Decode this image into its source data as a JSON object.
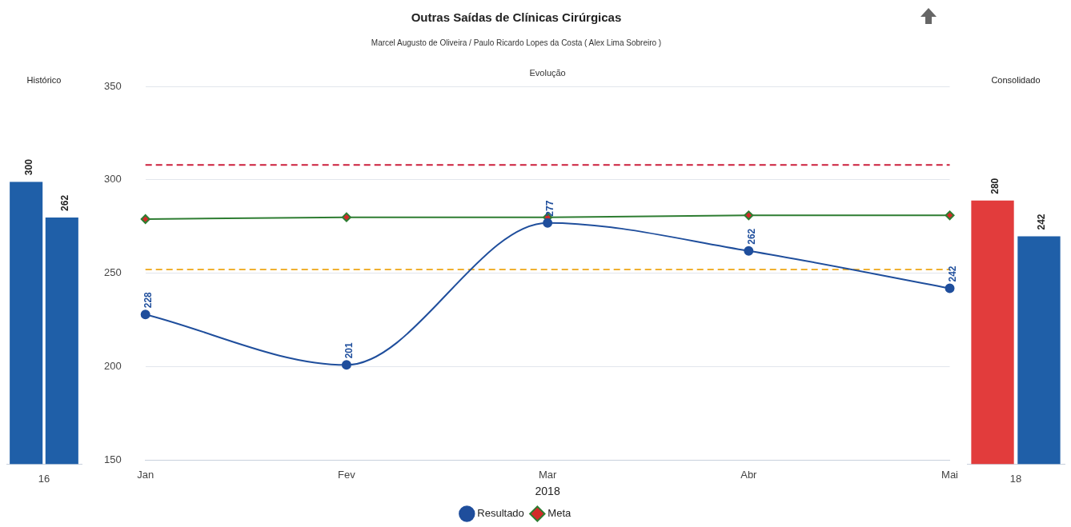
{
  "chart_data": [
    {
      "type": "bar",
      "title": "Histórico",
      "categories": [
        "16"
      ],
      "tick_labels": "x",
      "grid": false,
      "legend": false,
      "series": [
        {
          "color": "#1f5fa8",
          "values": [
            300
          ],
          "value_labels": [
            "300"
          ]
        },
        {
          "color": "#1f5fa8",
          "values": [
            262
          ],
          "value_labels": [
            "262"
          ]
        }
      ]
    },
    {
      "type": "line",
      "title": "Outras Saídas de Clínicas Cirúrgicas",
      "subtitle": "Marcel Augusto de Oliveira / Paulo Ricardo Lopes da Costa ( Alex Lima Sobreiro )",
      "annotations": [
        "Evolução"
      ],
      "xlabel": "2018",
      "categories": [
        "Jan",
        "Fev",
        "Mar",
        "Abr",
        "Mai"
      ],
      "ylim": [
        150,
        350
      ],
      "yticks": [
        150,
        200,
        250,
        300,
        350
      ],
      "grid": "y",
      "legend": "bottom",
      "marker": "circle",
      "series": [
        {
          "name": "Resultado",
          "color": "#1f4e9c",
          "values": [
            228,
            201,
            277,
            262,
            242
          ],
          "value_labels": [
            "228",
            "201",
            "277",
            "262",
            "242"
          ]
        },
        {
          "name": "Meta",
          "color": "#d42a2a",
          "marker": "diamond",
          "values": [
            279,
            280,
            280,
            281,
            281
          ]
        }
      ],
      "ref_lines": [
        {
          "axis": "y",
          "value": 308,
          "color": "#cc1f3c",
          "line_style": "dashed"
        },
        {
          "axis": "y",
          "value": 252,
          "color": "#f0b030",
          "line_style": "dashed"
        }
      ]
    },
    {
      "type": "bar",
      "title": "Consolidado",
      "categories": [
        "18"
      ],
      "tick_labels": "x",
      "grid": false,
      "legend": false,
      "series": [
        {
          "color": "#e23c3c",
          "values": [
            280
          ],
          "value_labels": [
            "280"
          ]
        },
        {
          "color": "#1f5fa8",
          "values": [
            242
          ],
          "value_labels": [
            "242"
          ]
        }
      ]
    }
  ]
}
